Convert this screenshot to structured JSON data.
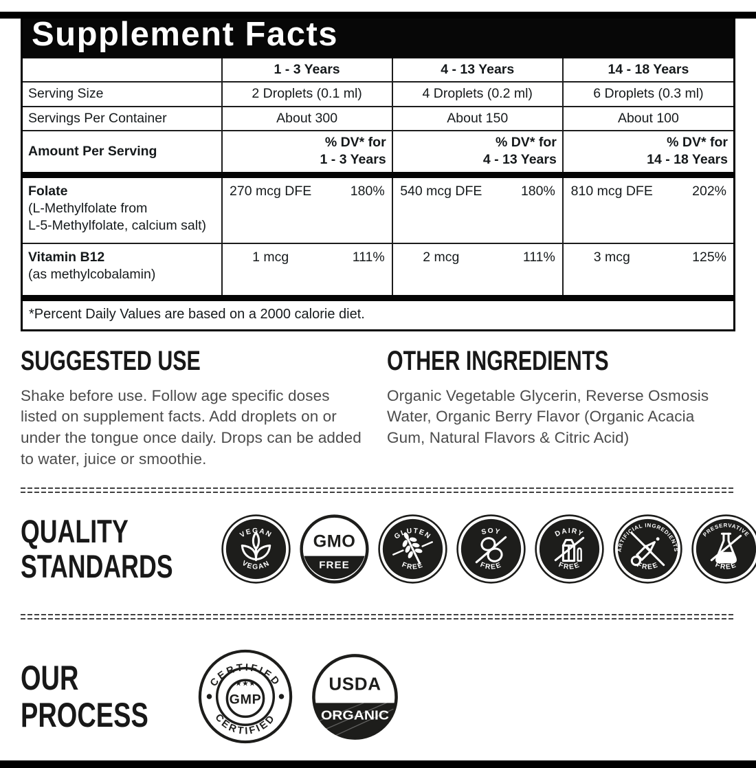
{
  "colors": {
    "ink": "#15191b",
    "badge_black": "#1d1d1b",
    "body_text": "#4b4b4b"
  },
  "supplement_facts": {
    "title": "Supplement Facts",
    "age_groups": [
      "1 - 3 Years",
      "4 - 13 Years",
      "14 - 18 Years"
    ],
    "serving_size": {
      "label": "Serving Size",
      "values": [
        "2 Droplets (0.1 ml)",
        "4 Droplets (0.2 ml)",
        "6 Droplets (0.3 ml)"
      ]
    },
    "servings_per_container": {
      "label": "Servings Per Container",
      "values": [
        "About 300",
        "About 150",
        "About 100"
      ]
    },
    "amount_per_serving_label": "Amount Per Serving",
    "dv_prefix": "% DV* for",
    "nutrients": [
      {
        "name": "Folate",
        "details": [
          "(L-Methylfolate from",
          "L-5-Methylfolate, calcium salt)"
        ],
        "amounts": [
          "270 mcg DFE",
          "540 mcg DFE",
          "810 mcg DFE"
        ],
        "dvs": [
          "180%",
          "180%",
          "202%"
        ]
      },
      {
        "name": "Vitamin B12",
        "details": [
          "(as methylcobalamin)"
        ],
        "amounts": [
          "1 mcg",
          "2 mcg",
          "3 mcg"
        ],
        "dvs": [
          "111%",
          "111%",
          "125%"
        ]
      }
    ],
    "footnote": "*Percent Daily Values are based on a 2000 calorie diet."
  },
  "suggested_use": {
    "heading": "SUGGESTED USE",
    "body": "Shake before use. Follow age specific doses listed on supplement facts. Add droplets on or under the tongue once daily. Drops can be added to water, juice or smoothie."
  },
  "other_ingredients": {
    "heading": "OTHER INGREDIENTS",
    "body": "Organic Vegetable Glycerin, Reverse Osmosis Water, Organic Berry Flavor (Organic Acacia Gum, Natural Flavors & Citric Acid)"
  },
  "quality_standards": {
    "heading_lines": [
      "QUALITY",
      "STANDARDS"
    ],
    "badges": [
      {
        "id": "vegan",
        "icon": "leaf-icon",
        "arc_top": "VEGAN",
        "arc_bottom": "VEGAN"
      },
      {
        "id": "gmo-free",
        "icon": "gmo-text",
        "center": "GMO",
        "band": "FREE"
      },
      {
        "id": "gluten-free",
        "icon": "wheat-icon",
        "arc_top": "GLUTEN",
        "arc_bottom": "FREE"
      },
      {
        "id": "soy-free",
        "icon": "bean-icon",
        "arc_top": "SOY",
        "arc_bottom": "FREE"
      },
      {
        "id": "dairy-free",
        "icon": "milk-icon",
        "arc_top": "DAIRY",
        "arc_bottom": "FREE"
      },
      {
        "id": "artificial-ingredients-free",
        "icon": "dropper-icon",
        "arc_top": "ARTIFICIAL INGREDIENTS",
        "arc_bottom": "FREE"
      },
      {
        "id": "preservative-free",
        "icon": "flask-icon",
        "arc_top": "PRESERVATIVE",
        "arc_bottom": "FREE"
      }
    ]
  },
  "our_process": {
    "heading_lines": [
      "OUR",
      "PROCESS"
    ],
    "badges": [
      {
        "id": "gmp",
        "arc_top": "CERTIFIED",
        "center": "GMP",
        "arc_bottom": "CERTIFIED",
        "stars": "★★★"
      },
      {
        "id": "usda-organic",
        "top": "USDA",
        "bottom": "ORGANIC"
      }
    ]
  }
}
